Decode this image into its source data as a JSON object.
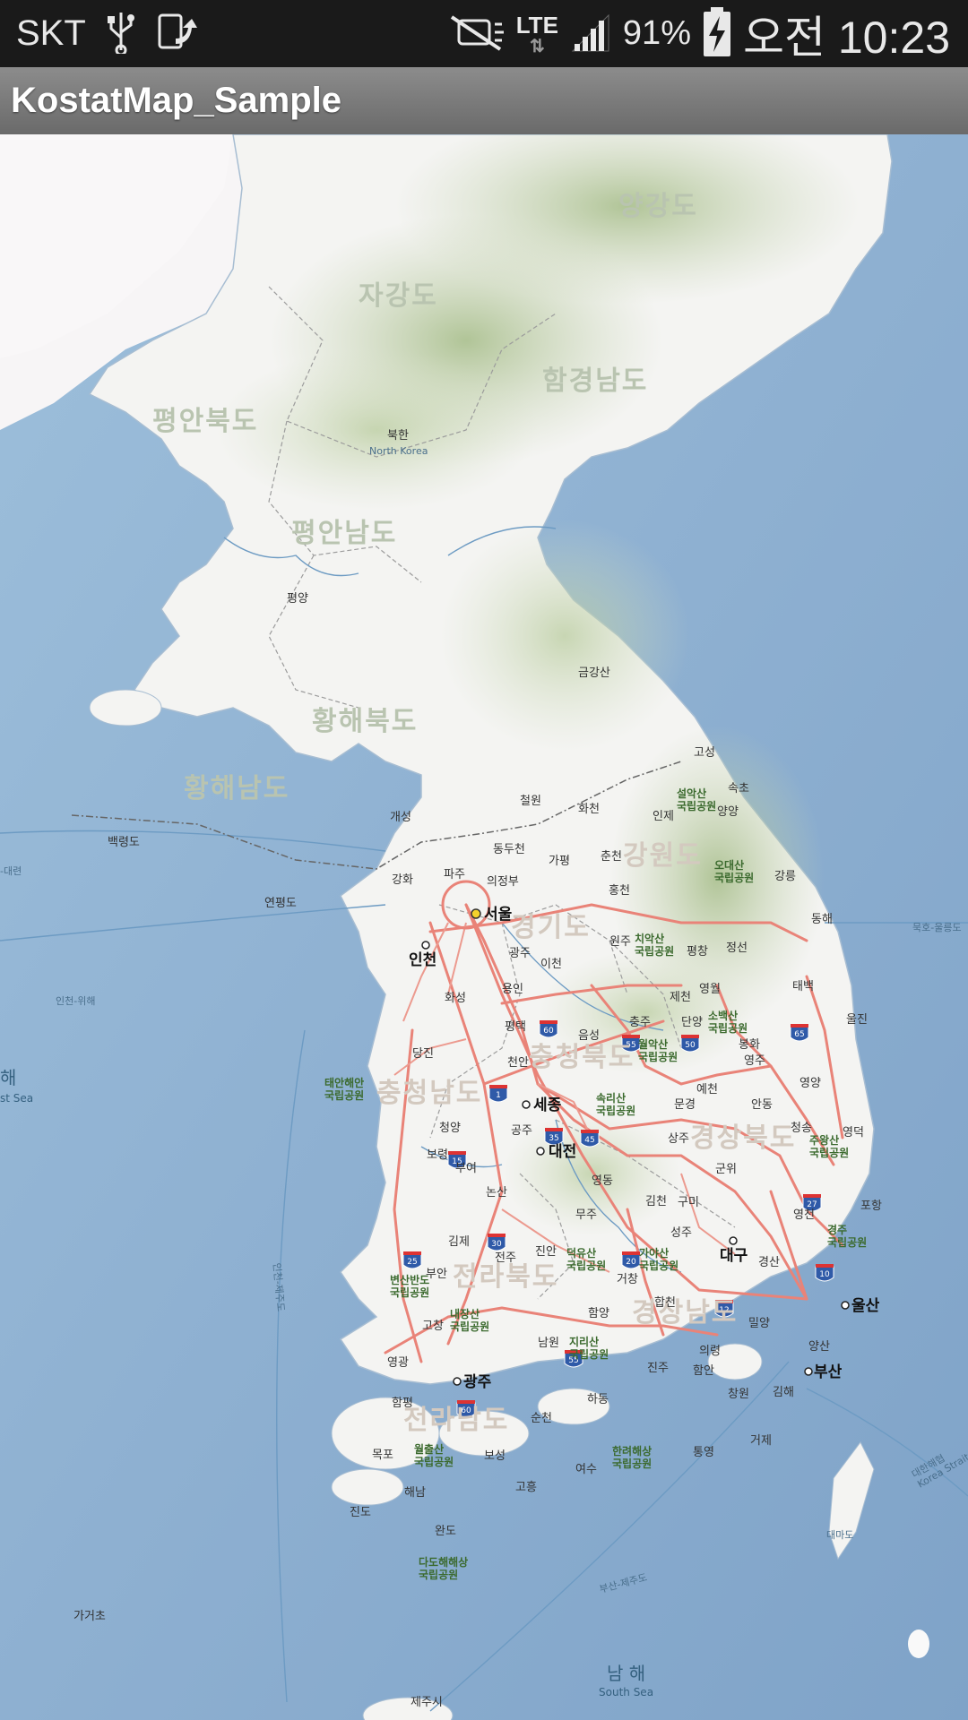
{
  "status_bar": {
    "carrier": "SKT",
    "network": "LTE",
    "battery": "91%",
    "time": "오전 10:23",
    "icons": [
      "usb-icon",
      "screen-rotate-icon",
      "mute-icon",
      "signal-icon",
      "battery-charging-icon"
    ]
  },
  "app_bar": {
    "title": "KostatMap_Sample"
  },
  "map": {
    "colors": {
      "sea": "#8fb2d3",
      "land": "#f4f4f2",
      "relief": "#b7c9a0",
      "road": "#e98378"
    },
    "provinces": {
      "yanggang": "양강도",
      "jagang": "자강도",
      "hamgyeong_nam": "함경남도",
      "pyeongan_buk": "평안북도",
      "pyeongan_nam": "평안남도",
      "hwanghae_buk": "황해북도",
      "hwanghae_nam": "황해남도",
      "gangwon": "강원도",
      "gyeonggi": "경기도",
      "chungcheong_buk": "충청북도",
      "chungcheong_nam": "충청남도",
      "gyeongsang_buk": "경상북도",
      "jeolla_buk": "전라북도",
      "gyeongsang_nam": "경상남도",
      "jeolla_nam": "전라남도"
    },
    "north_korea": {
      "ko": "북한",
      "en": "North Korea"
    },
    "cities": {
      "seoul": "서울",
      "incheon": "인천",
      "sejong": "세종",
      "daejeon": "대전",
      "daegu": "대구",
      "ulsan": "울산",
      "busan": "부산",
      "gwangju": "광주",
      "pyongyang": "평양",
      "geumgangsan": "금강산",
      "goseong": "고성",
      "sokcho": "속초",
      "yangyang": "양양",
      "gangneung": "강릉",
      "donghae": "동해",
      "cheorwon": "철원",
      "hwacheon": "화천",
      "inje": "인제",
      "chuncheon": "춘천",
      "gapyeong": "가평",
      "dongducheon": "동두천",
      "paju": "파주",
      "uijeongbu": "의정부",
      "ganghwa": "강화",
      "gaeseong": "개성",
      "gwangju_gg": "광주",
      "icheon": "이천",
      "yongin": "용인",
      "hwaseong": "화성",
      "pyeongtaek": "평택",
      "hongcheon": "홍천",
      "wonju": "원주",
      "pyeongchang": "평창",
      "jeongseon": "정선",
      "yeongwol": "영월",
      "jecheon": "제천",
      "taebaek": "태백",
      "danyang": "단양",
      "bonghwa": "봉화",
      "yeongju": "영주",
      "uljin": "울진",
      "chungju": "충주",
      "eumseong": "음성",
      "cheonan": "천안",
      "dangjin": "당진",
      "yecheon": "예천",
      "andong": "안동",
      "yeongyang": "영양",
      "mungyeong": "문경",
      "sangju": "상주",
      "cheongsong": "청송",
      "yeongdeok": "영덕",
      "gunwi": "군위",
      "gongju": "공주",
      "cheongyang": "청양",
      "boryeong": "보령",
      "buyeo": "부여",
      "nonsan": "논산",
      "yeongdong": "영동",
      "gimcheon": "김천",
      "gumi": "구미",
      "yeongcheon": "영천",
      "pohang": "포항",
      "gyeongju": "경주",
      "gyeongsan": "경산",
      "muju": "무주",
      "seongju": "성주",
      "gimje": "김제",
      "jeonju": "전주",
      "jinan": "진안",
      "geochang": "거창",
      "buan": "부안",
      "gochang": "고창",
      "namwon": "남원",
      "hamyang": "함양",
      "hapcheon": "합천",
      "miryang": "밀양",
      "yangsan": "양산",
      "uiryeong": "의령",
      "jinju": "진주",
      "haman": "함안",
      "changwon": "창원",
      "gimhae": "김해",
      "yeonggwang": "영광",
      "hampyeong": "함평",
      "hadong": "하동",
      "suncheon": "순천",
      "mokpo": "목포",
      "boseong": "보성",
      "yeosu": "여수",
      "tongyeong": "통영",
      "geoje": "거제",
      "goheung": "고흥",
      "haenam": "해남",
      "jindo": "진도",
      "wando": "완도",
      "jeju": "제주시",
      "baengnyeongdo": "백령도",
      "yeonpyeongdo": "연평도",
      "gageodo": "가거초",
      "daemado": "대마도"
    },
    "parks": {
      "seorak": "설악산\n국립공원",
      "odaesan": "오대산\n국립공원",
      "chiaksan": "치악산\n국립공원",
      "sobaeksan": "소백산\n국립공원",
      "woraksan": "월악산\n국립공원",
      "songnisan": "속리산\n국립공원",
      "taean": "태안해안\n국립공원",
      "juwangsan": "주왕산\n국립공원",
      "gyeongju_park": "경주\n국립공원",
      "deogyusan": "덕유산\n국립공원",
      "gayasan": "가야산\n국립공원",
      "byeonsan": "변산반도\n국립공원",
      "naejangsan": "내장산\n국립공원",
      "jirisan": "지리산\n국립공원",
      "wolchulsan": "월출산\n국립공원",
      "hallyeo": "한려해상\n국립공원",
      "dadohae": "다도해해상\n국립공원"
    },
    "seas": {
      "south_sea_ko": "남 해",
      "south_sea_en": "South Sea",
      "west_sea_ko": "해",
      "west_sea_en": "st Sea",
      "strait": "대한해협\nKorea Strait"
    },
    "routes": {
      "incheon_wihae": "인천-위해",
      "mukho_ulleung": "묵호-울릉도",
      "busan_jeju": "부산-제주도",
      "incheon_jeju": "인천-제주도",
      "dalian": "-대련"
    },
    "highway_shields": [
      "60",
      "55",
      "50",
      "65",
      "1",
      "35",
      "45",
      "15",
      "25",
      "30",
      "20",
      "12",
      "27",
      "10"
    ]
  }
}
